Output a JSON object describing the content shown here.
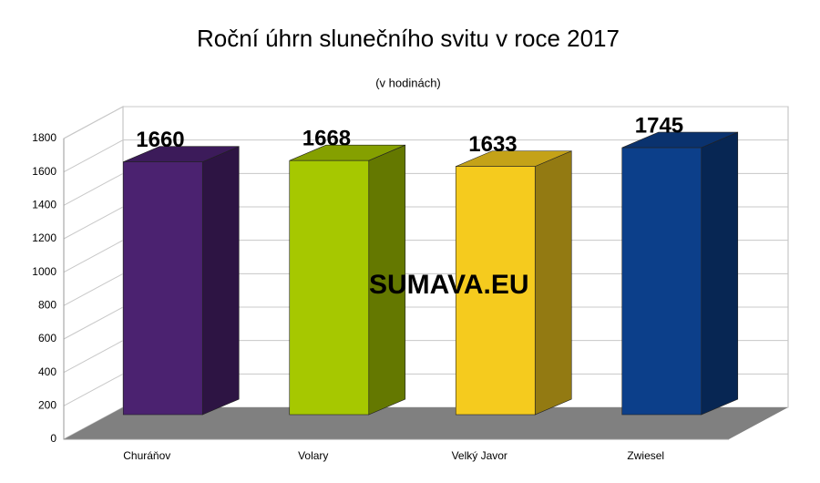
{
  "chart_data": {
    "type": "bar3d",
    "title": "Roční úhrn slunečního svitu v roce 2017",
    "subtitle": "(v hodinách)",
    "categories": [
      "Churáňov",
      "Volary",
      "Velký Javor",
      "Zwiesel"
    ],
    "values": [
      1660,
      1668,
      1633,
      1745
    ],
    "colors": [
      "#4b2270",
      "#a6c800",
      "#f5cb1e",
      "#0c3f8a"
    ],
    "ylim": [
      0,
      1800
    ],
    "yticks": [
      0,
      200,
      400,
      600,
      800,
      1000,
      1200,
      1400,
      1600,
      1800
    ],
    "grid": true,
    "watermark": "SUMAVA.EU"
  }
}
